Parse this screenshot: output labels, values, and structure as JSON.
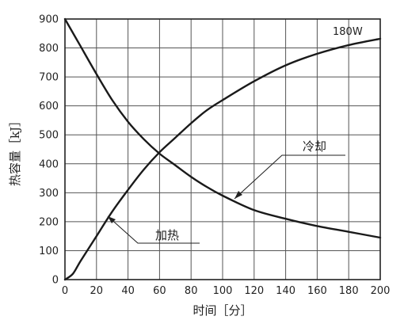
{
  "chart_data": {
    "type": "line",
    "title": "",
    "xlabel": "时间［分］",
    "ylabel": "热容量［kJ］",
    "xlim": [
      0,
      200
    ],
    "ylim": [
      0,
      900
    ],
    "x_ticks": [
      0,
      20,
      40,
      60,
      80,
      100,
      120,
      140,
      160,
      180,
      200
    ],
    "y_ticks": [
      0,
      100,
      200,
      300,
      400,
      500,
      600,
      700,
      800,
      900
    ],
    "grid": true,
    "series": [
      {
        "name": "加热",
        "x": [
          0,
          5,
          10,
          20,
          30,
          40,
          50,
          60,
          70,
          80,
          90,
          100,
          120,
          140,
          160,
          180,
          200
        ],
        "y": [
          0,
          20,
          65,
          150,
          235,
          310,
          380,
          440,
          490,
          540,
          585,
          620,
          685,
          740,
          780,
          810,
          832
        ]
      },
      {
        "name": "冷却",
        "x": [
          0,
          10,
          20,
          30,
          40,
          50,
          60,
          70,
          80,
          90,
          100,
          120,
          140,
          160,
          180,
          200
        ],
        "y": [
          900,
          805,
          710,
          620,
          545,
          485,
          435,
          395,
          355,
          320,
          290,
          240,
          210,
          185,
          165,
          145
        ]
      }
    ],
    "annotations": [
      {
        "text": "180W",
        "anchor_series": "加热"
      },
      {
        "text": "冷却",
        "anchor_series": "冷却"
      },
      {
        "text": "加热",
        "anchor_series": "加热"
      }
    ]
  }
}
